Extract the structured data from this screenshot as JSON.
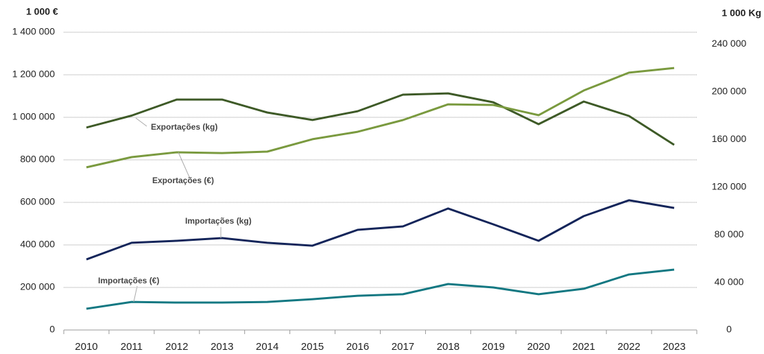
{
  "chart_data": {
    "type": "line",
    "y_label": "1 000 €",
    "y2_label": "1 000 Kg",
    "categories": [
      "2010",
      "2011",
      "2012",
      "2013",
      "2014",
      "2015",
      "2016",
      "2017",
      "2018",
      "2019",
      "2020",
      "2021",
      "2022",
      "2023"
    ],
    "series": [
      {
        "name": "Exportações (kg)",
        "color": "#3e5a27",
        "axis": "y2",
        "values": [
          170000,
          180000,
          193500,
          193500,
          182600,
          176300,
          183700,
          197600,
          198700,
          191200,
          172800,
          191800,
          179700,
          155500
        ]
      },
      {
        "name": "Exportações (€)",
        "color": "#7a9a3f",
        "axis": "y",
        "values": [
          765000,
          813000,
          835500,
          832000,
          838800,
          897000,
          932000,
          987000,
          1061000,
          1058000,
          1010000,
          1126000,
          1210000,
          1232000
        ]
      },
      {
        "name": "Importações (kg)",
        "color": "#14255a",
        "axis": "y2",
        "values": [
          59300,
          73200,
          74900,
          77200,
          73200,
          70800,
          84100,
          87000,
          102000,
          88700,
          74900,
          95600,
          108900,
          102500
        ]
      },
      {
        "name": "Importações (€)",
        "color": "#137882",
        "axis": "y",
        "values": [
          100000,
          132000,
          129000,
          129000,
          132000,
          145000,
          161000,
          168000,
          216000,
          200000,
          168000,
          194000,
          261000,
          284000
        ]
      }
    ],
    "ylim": [
      0,
      1400000
    ],
    "yticks": [
      0,
      {
        "value": 200000,
        "label": "200 000"
      },
      {
        "value": 400000,
        "label": "400 000"
      },
      {
        "value": 600000,
        "label": "600 000"
      },
      {
        "value": 800000,
        "label": "800 000"
      },
      {
        "value": 1000000,
        "label": "1 000 000"
      },
      {
        "value": 1200000,
        "label": "1 200 000"
      },
      {
        "value": 1400000,
        "label": "1 400 000"
      }
    ],
    "y2lim": [
      0,
      250000
    ],
    "y2ticks": [
      0,
      {
        "value": 40000,
        "label": "40 000"
      },
      {
        "value": 80000,
        "label": "80 000"
      },
      {
        "value": 120000,
        "label": "120 000"
      },
      {
        "value": 160000,
        "label": "160 000"
      },
      {
        "value": 200000,
        "label": "200 000"
      },
      {
        "value": 240000,
        "label": "240 000"
      }
    ],
    "grid": true
  }
}
